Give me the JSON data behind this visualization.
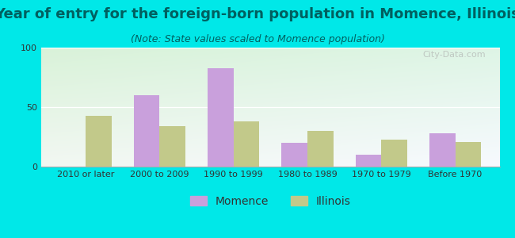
{
  "title": "Year of entry for the foreign-born population in Momence, Illinois",
  "subtitle": "(Note: State values scaled to Momence population)",
  "categories": [
    "2010 or later",
    "2000 to 2009",
    "1990 to 1999",
    "1980 to 1989",
    "1970 to 1979",
    "Before 1970"
  ],
  "momence_values": [
    0,
    60,
    83,
    20,
    10,
    28
  ],
  "illinois_values": [
    43,
    34,
    38,
    30,
    23,
    21
  ],
  "momence_color": "#c9a0dc",
  "illinois_color": "#c2c98a",
  "background_color": "#00e8e8",
  "ylim": [
    0,
    100
  ],
  "yticks": [
    0,
    50,
    100
  ],
  "title_fontsize": 13,
  "subtitle_fontsize": 9,
  "legend_fontsize": 10,
  "tick_fontsize": 8,
  "bar_width": 0.35,
  "title_color": "#006060",
  "subtitle_color": "#006060",
  "watermark": "City-Data.com"
}
